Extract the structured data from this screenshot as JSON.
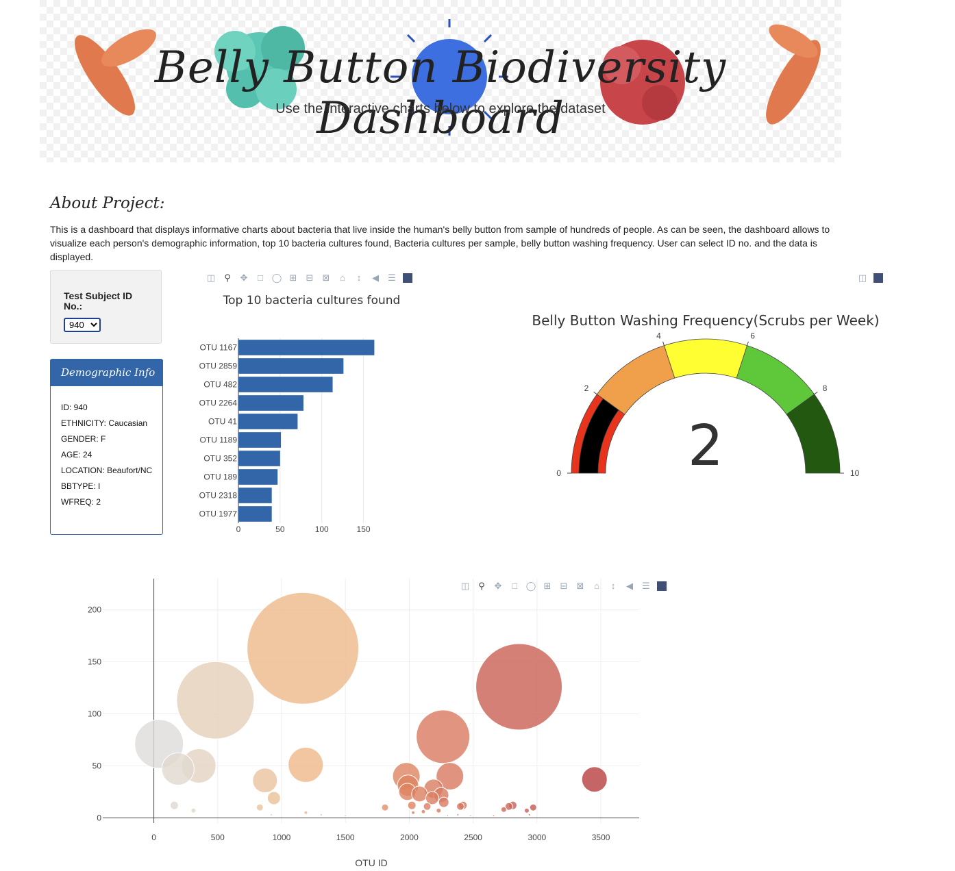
{
  "banner": {
    "title": "Belly Button Biodiversity Dashboard",
    "subtitle": "Use the interactive charts below to explore the dataset"
  },
  "about": {
    "heading": "About Project:",
    "text": "This is a dashboard that displays informative charts about bacteria that live inside the human's belly button from sample of hundreds of people. As can be seen, the dashboard allows to visualize each person's demographic information, top 10 bacteria cultures found, Bacteria cultures per sample, belly button washing frequency. User can select ID no. and the data is displayed."
  },
  "selector": {
    "label": "Test Subject ID No.:",
    "selected": "940"
  },
  "demographics": {
    "title": "Demographic Info",
    "items": [
      "ID: 940",
      "ETHNICITY: Caucasian",
      "GENDER: F",
      "AGE: 24",
      "LOCATION: Beaufort/NC",
      "BBTYPE: I",
      "WFREQ: 2"
    ]
  },
  "toolbar_icons": {
    "full": [
      "camera-icon",
      "zoom-icon",
      "pan-icon",
      "box-select-icon",
      "lasso-icon",
      "zoom-in-icon",
      "zoom-out-icon",
      "autoscale-icon",
      "reset-axes-icon",
      "spike-lines-icon",
      "hover-closest-icon",
      "hover-compare-icon",
      "plotly-logo-icon"
    ],
    "mini": [
      "camera-icon",
      "plotly-logo-icon"
    ]
  },
  "colors": {
    "bar": "#3266a8",
    "demo_header": "#3266a8",
    "gauge_steps": [
      "#e8341c",
      "#f0a04b",
      "#fefe33",
      "#5ec73a",
      "#235810"
    ],
    "gauge_needle": "#000000"
  },
  "chart_data": [
    {
      "type": "bar",
      "orientation": "horizontal",
      "title": "Top 10 bacteria cultures found",
      "categories": [
        "OTU 1167",
        "OTU 2859",
        "OTU 482",
        "OTU 2264",
        "OTU 41",
        "OTU 1189",
        "OTU 352",
        "OTU 189",
        "OTU 2318",
        "OTU 1977"
      ],
      "values": [
        163,
        126,
        113,
        78,
        71,
        51,
        50,
        47,
        40,
        40
      ],
      "xlim": [
        0,
        175
      ],
      "xticks": [
        0,
        50,
        100,
        150
      ],
      "grid": true
    },
    {
      "type": "gauge",
      "title": "Belly Button Washing Frequency(Scrubs per Week)",
      "value": 2,
      "range": [
        0,
        10
      ],
      "ticks": [
        0,
        2,
        4,
        6,
        8,
        10
      ],
      "steps": [
        [
          0,
          2
        ],
        [
          2,
          4
        ],
        [
          4,
          6
        ],
        [
          6,
          8
        ],
        [
          8,
          10
        ]
      ]
    },
    {
      "type": "scatter",
      "style": "bubble",
      "xlabel": "OTU ID",
      "xlim": [
        -400,
        3800
      ],
      "ylim": [
        -5,
        230
      ],
      "xticks": [
        0,
        500,
        1000,
        1500,
        2000,
        2500,
        3000,
        3500
      ],
      "yticks": [
        0,
        50,
        100,
        150,
        200
      ],
      "grid": true,
      "points": [
        {
          "x": 41,
          "y": 71
        },
        {
          "x": 189,
          "y": 47
        },
        {
          "x": 352,
          "y": 50
        },
        {
          "x": 482,
          "y": 113
        },
        {
          "x": 1167,
          "y": 163
        },
        {
          "x": 1189,
          "y": 51
        },
        {
          "x": 2859,
          "y": 126
        },
        {
          "x": 2264,
          "y": 78
        },
        {
          "x": 2318,
          "y": 40
        },
        {
          "x": 1977,
          "y": 40
        },
        {
          "x": 3450,
          "y": 37
        },
        {
          "x": 870,
          "y": 36
        },
        {
          "x": 940,
          "y": 19
        },
        {
          "x": 1990,
          "y": 31
        },
        {
          "x": 1985,
          "y": 25
        },
        {
          "x": 2080,
          "y": 23
        },
        {
          "x": 2190,
          "y": 28
        },
        {
          "x": 2180,
          "y": 19
        },
        {
          "x": 2250,
          "y": 22
        },
        {
          "x": 2270,
          "y": 15
        },
        {
          "x": 2420,
          "y": 12
        },
        {
          "x": 2400,
          "y": 11
        },
        {
          "x": 2780,
          "y": 11
        },
        {
          "x": 2810,
          "y": 12
        },
        {
          "x": 2970,
          "y": 10
        },
        {
          "x": 2740,
          "y": 8
        },
        {
          "x": 2920,
          "y": 7
        },
        {
          "x": 1810,
          "y": 10
        },
        {
          "x": 2020,
          "y": 12
        },
        {
          "x": 2140,
          "y": 11
        },
        {
          "x": 2110,
          "y": 6
        },
        {
          "x": 2230,
          "y": 7
        },
        {
          "x": 2030,
          "y": 5
        },
        {
          "x": 160,
          "y": 12
        },
        {
          "x": 310,
          "y": 7
        },
        {
          "x": 830,
          "y": 10
        },
        {
          "x": 1190,
          "y": 5
        },
        {
          "x": 1310,
          "y": 3
        },
        {
          "x": 920,
          "y": 3
        },
        {
          "x": 2380,
          "y": 3
        },
        {
          "x": 2480,
          "y": 2
        },
        {
          "x": 2660,
          "y": 2
        },
        {
          "x": 1500,
          "y": 2
        },
        {
          "x": 2300,
          "y": 2
        },
        {
          "x": 2940,
          "y": 3
        }
      ]
    }
  ]
}
